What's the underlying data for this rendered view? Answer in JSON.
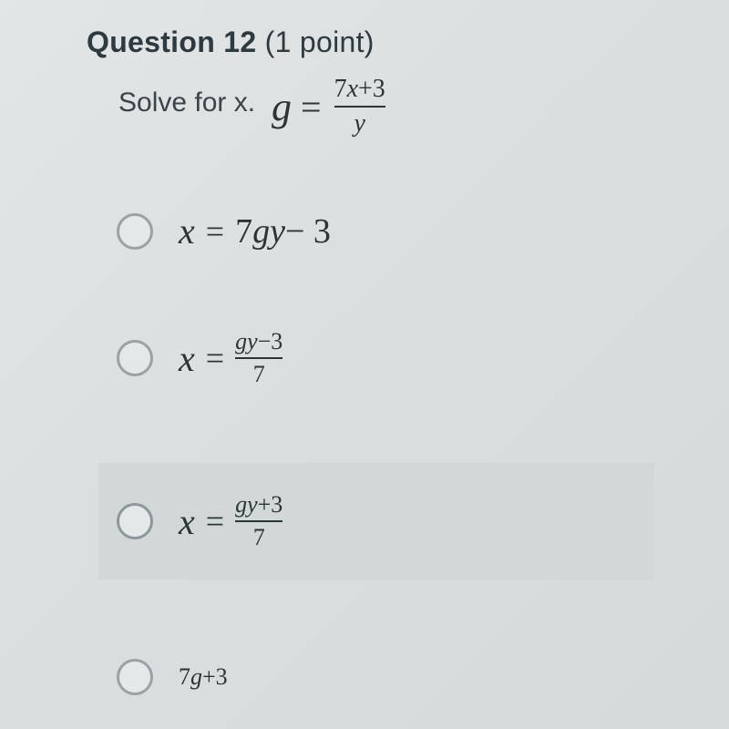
{
  "header": {
    "label": "Question 12",
    "points": "(1 point)"
  },
  "prompt": {
    "text": "Solve for x.",
    "eq_lhs": "g",
    "eq_num_a": "7",
    "eq_num_b": "x",
    "eq_num_c": "+3",
    "eq_den": "y"
  },
  "options": {
    "a": {
      "lhs": "x",
      "rhs_a": "7",
      "rhs_b": "gy",
      "rhs_c": " − 3"
    },
    "b": {
      "lhs": "x",
      "num_a": "gy",
      "num_b": "−3",
      "den": "7"
    },
    "c": {
      "lhs": "x",
      "num_a": "gy",
      "num_b": "+3",
      "den": "7"
    },
    "d": {
      "partial_a": "7",
      "partial_b": "g",
      "partial_c": "+3"
    }
  },
  "style": {
    "bg": "#dbe0e1",
    "text": "#2d3436",
    "radio_border": "#9aa2a6",
    "selected_bg": "#d2d7d8"
  }
}
